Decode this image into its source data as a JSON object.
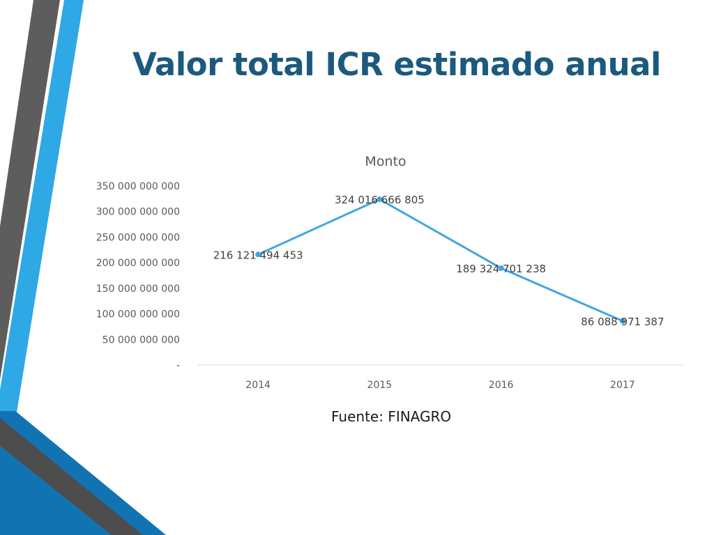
{
  "slide": {
    "title": "Valor total ICR estimado anual",
    "source": "Fuente: FINAGRO",
    "colors": {
      "title": "#1b5a7e",
      "accent_blue": "#2fa8e6",
      "dark_blue": "#1273b3",
      "gray": "#595959",
      "line": "#41a6e0"
    }
  },
  "chart_data": {
    "type": "line",
    "title": "Monto",
    "categories": [
      "2014",
      "2015",
      "2016",
      "2017"
    ],
    "series": [
      {
        "values": [
          216121494453,
          324016666805,
          189324701238,
          86088971387
        ]
      }
    ],
    "data_labels": [
      "216 121 494 453",
      "324 016 666 805",
      "189 324 701 238",
      "86 088 971 387"
    ],
    "ylim": [
      0,
      350000000000
    ],
    "yticks": [
      0,
      50000000000,
      100000000000,
      150000000000,
      200000000000,
      250000000000,
      300000000000,
      350000000000
    ],
    "ytick_labels": [
      "-",
      "50 000 000 000",
      "100 000 000 000",
      "150 000 000 000",
      "200 000 000 000",
      "250 000 000 000",
      "300 000 000 000",
      "350 000 000 000"
    ],
    "grid": false,
    "legend": "none"
  }
}
